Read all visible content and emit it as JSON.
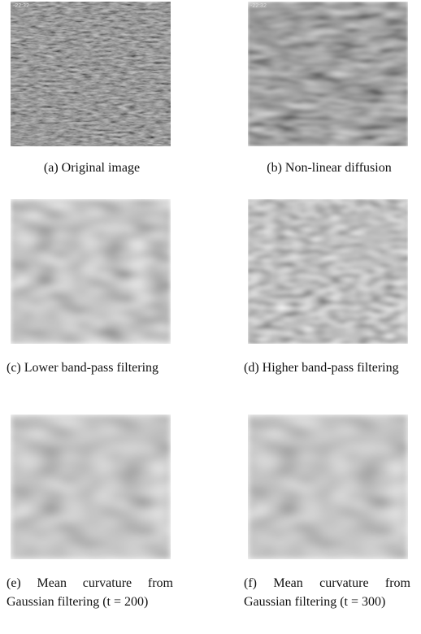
{
  "figure": {
    "panels": [
      {
        "caption": "(a) Original image",
        "stamp": "-22:32"
      },
      {
        "caption": "(b) Non-linear diffusion",
        "stamp": "-22:32"
      },
      {
        "caption": "(c) Lower band-pass filtering"
      },
      {
        "caption": "(d) Higher band-pass filtering"
      },
      {
        "caption": "(e) Mean curvature from Gaussian filtering (t = 200)"
      },
      {
        "caption": "(f) Mean curvature from Gaussian filtering (t = 300)"
      }
    ]
  }
}
